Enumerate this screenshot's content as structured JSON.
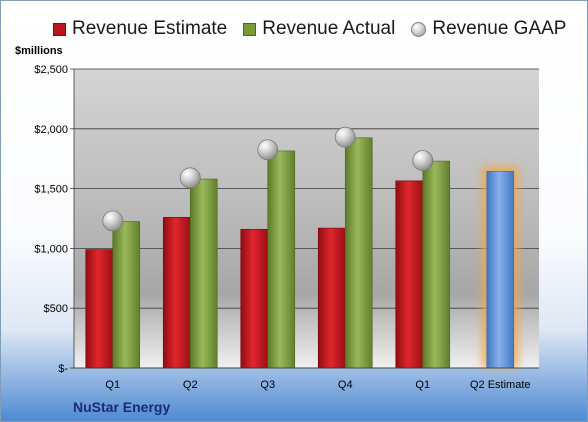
{
  "legend": {
    "estimate_label": "Revenue Estimate",
    "actual_label": "Revenue Actual",
    "gaap_label": "Revenue GAAP"
  },
  "unit_label": "$millions",
  "footer_label": "NuStar Energy",
  "colors": {
    "estimate": "#c0141c",
    "actual": "#7a9a3a",
    "gaap": "#a6a6a6",
    "forecast": "#5b8fd6",
    "forecast_glow": "#f5a640"
  },
  "chart_data": {
    "type": "bar",
    "categories": [
      "Q1",
      "Q2",
      "Q3",
      "Q4",
      "Q1",
      "Q2 Estimate"
    ],
    "series": [
      {
        "name": "Revenue Estimate",
        "values": [
          990,
          1260,
          1160,
          1170,
          1565,
          1645
        ]
      },
      {
        "name": "Revenue Actual",
        "values": [
          1225,
          1580,
          1815,
          1925,
          1730,
          null
        ]
      },
      {
        "name": "Revenue GAAP",
        "values": [
          1230,
          1590,
          1825,
          1930,
          1735,
          null
        ]
      }
    ],
    "ylim": [
      0,
      2500
    ],
    "yticks": [
      0,
      500,
      1000,
      1500,
      2000,
      2500
    ],
    "ytick_labels": [
      "$-",
      "$500",
      "$1,000",
      "$1,500",
      "$2,000",
      "$2,500"
    ],
    "grid": true,
    "legend_position": "top"
  }
}
